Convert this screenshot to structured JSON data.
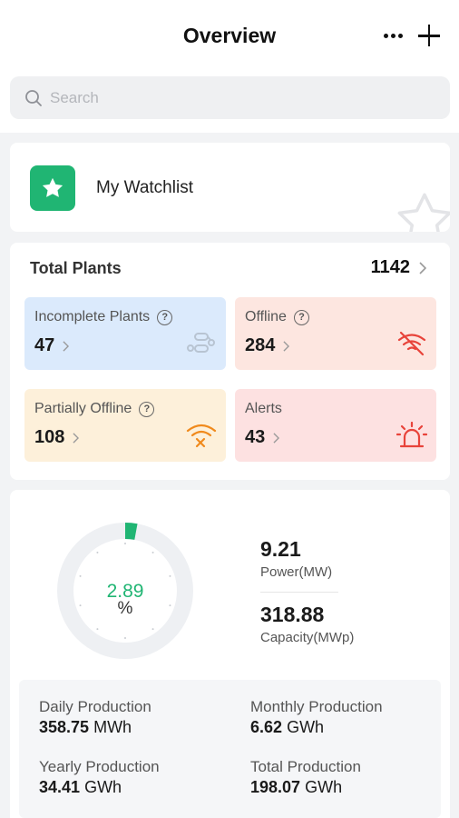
{
  "header": {
    "title": "Overview"
  },
  "search": {
    "placeholder": "Search"
  },
  "watchlist": {
    "label": "My Watchlist"
  },
  "plants": {
    "title": "Total Plants",
    "count": "1142",
    "tiles": [
      {
        "label": "Incomplete Plants",
        "value": "47",
        "icon": "connector-icon",
        "color": "#b8c4d2"
      },
      {
        "label": "Offline",
        "value": "284",
        "icon": "signal-off-icon",
        "color": "#e8433a"
      },
      {
        "label": "Partially Offline",
        "value": "108",
        "icon": "wifi-error-icon",
        "color": "#f08a1c"
      },
      {
        "label": "Alerts",
        "value": "43",
        "icon": "alarm-light-icon",
        "color": "#e8433a"
      }
    ]
  },
  "production": {
    "utilization_value": "2.89",
    "utilization_unit": "%",
    "utilization_fraction": 0.0289,
    "power": {
      "value": "9.21",
      "label": "Power(MW)"
    },
    "capacity": {
      "value": "318.88",
      "label": "Capacity(MWp)"
    },
    "stats": [
      {
        "label": "Daily Production",
        "value": "358.75",
        "unit": "MWh"
      },
      {
        "label": "Monthly Production",
        "value": "6.62",
        "unit": "GWh"
      },
      {
        "label": "Yearly Production",
        "value": "34.41",
        "unit": "GWh"
      },
      {
        "label": "Total Production",
        "value": "198.07",
        "unit": "GWh"
      }
    ]
  },
  "colors": {
    "accent": "#20b573",
    "ring_track": "#eef0f3"
  }
}
